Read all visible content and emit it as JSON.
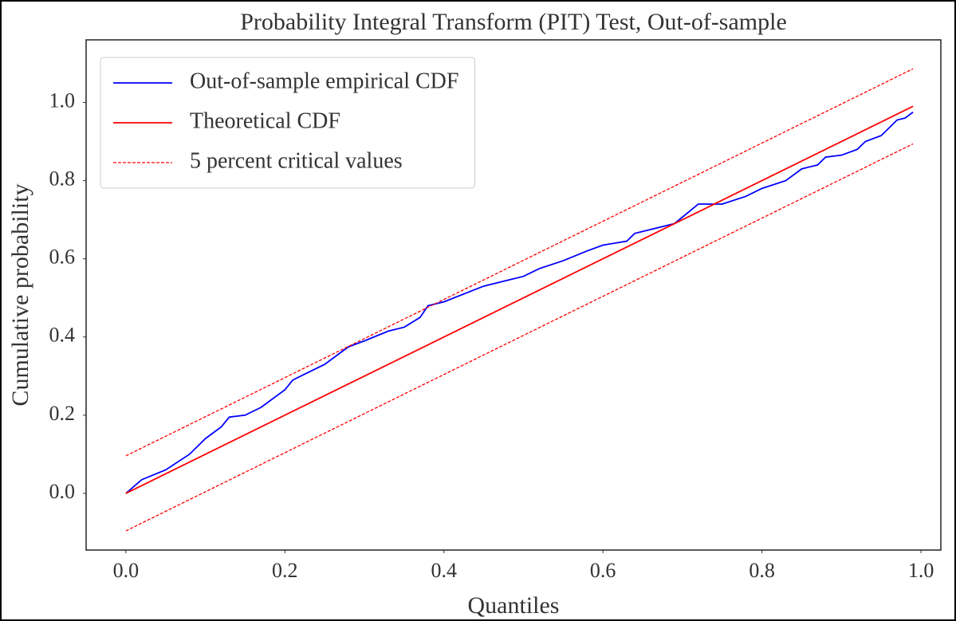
{
  "chart_data": {
    "type": "line",
    "title": "Probability Integral Transform (PIT) Test, Out-of-sample",
    "xlabel": "Quantiles",
    "ylabel": "Cumulative probability",
    "xlim": [
      -0.05,
      1.025
    ],
    "ylim": [
      -0.145,
      1.16
    ],
    "xticks": [
      {
        "value": 0,
        "label": "0.0"
      },
      0.2,
      0.4,
      0.6,
      0.8,
      {
        "value": 1,
        "label": "1.0"
      }
    ],
    "yticks": [
      {
        "value": 0,
        "label": "0.0"
      },
      0.2,
      0.4,
      0.6,
      0.8,
      {
        "value": 1,
        "label": "1.0"
      }
    ],
    "grid": false,
    "legend": "upper left",
    "series": [
      {
        "name": "Out-of-sample empirical CDF",
        "color": "#0000ff",
        "dash": "solid",
        "x": [
          0,
          0.02,
          0.05,
          0.08,
          0.1,
          0.12,
          0.13,
          0.15,
          0.17,
          0.2,
          0.21,
          0.25,
          0.28,
          0.3,
          0.33,
          0.35,
          0.37,
          0.38,
          0.4,
          0.45,
          0.5,
          0.52,
          0.55,
          0.58,
          0.6,
          0.63,
          0.64,
          0.66,
          0.69,
          0.72,
          0.75,
          0.78,
          0.8,
          0.83,
          0.85,
          0.87,
          0.88,
          0.9,
          0.92,
          0.93,
          0.95,
          0.97,
          0.98,
          0.99
        ],
        "values": [
          0,
          0.035,
          0.06,
          0.1,
          0.14,
          0.17,
          0.195,
          0.2,
          0.22,
          0.265,
          0.29,
          0.33,
          0.375,
          0.39,
          0.415,
          0.425,
          0.45,
          0.48,
          0.49,
          0.53,
          0.555,
          0.575,
          0.595,
          0.62,
          0.635,
          0.645,
          0.665,
          0.675,
          0.69,
          0.74,
          0.74,
          0.76,
          0.78,
          0.8,
          0.83,
          0.84,
          0.86,
          0.865,
          0.88,
          0.9,
          0.915,
          0.955,
          0.96,
          0.975
        ]
      },
      {
        "name": "Theoretical CDF",
        "color": "#ff0000",
        "dash": "solid",
        "x": [
          0,
          0.99
        ],
        "values": [
          0,
          0.99
        ]
      },
      {
        "name": "5 percent critical values",
        "color": "#ff0000",
        "dash": "dashed",
        "x": [
          0,
          0.99
        ],
        "values": [
          0.096,
          1.086
        ]
      },
      {
        "color": "#ff0000",
        "dash": "dashed",
        "x": [
          0,
          0.99
        ],
        "values": [
          -0.096,
          0.894
        ]
      }
    ]
  }
}
